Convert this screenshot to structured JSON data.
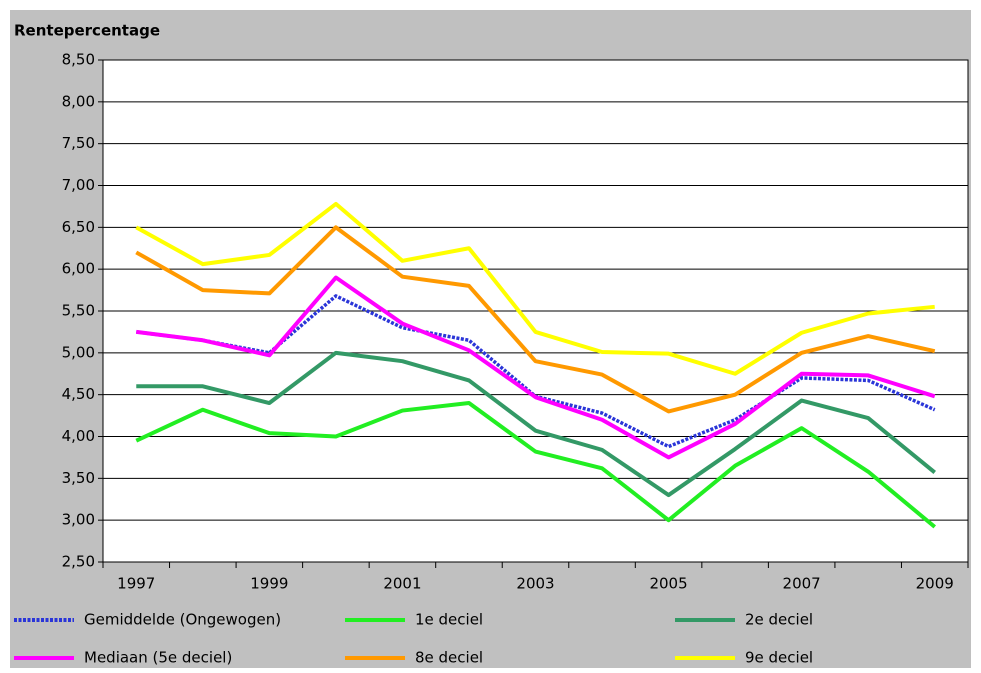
{
  "chart_data": {
    "type": "line",
    "title": "Rentepercentage",
    "categories": [
      "1997",
      null,
      "1999",
      null,
      "2001",
      null,
      "2003",
      null,
      "2005",
      null,
      "2007",
      null,
      "2009"
    ],
    "ylim": [
      2.5,
      8.5
    ],
    "yticks": [
      {
        "value": 2.5,
        "label": "2,50"
      },
      {
        "value": 3,
        "label": "3,00"
      },
      {
        "value": 3.5,
        "label": "3,50"
      },
      {
        "value": 4,
        "label": "4,00"
      },
      {
        "value": 4.5,
        "label": "4,50"
      },
      {
        "value": 5,
        "label": "5,00"
      },
      {
        "value": 5.5,
        "label": "5,50"
      },
      {
        "value": 6,
        "label": "6,00"
      },
      {
        "value": 6.5,
        "label": "6,50"
      },
      {
        "value": 7,
        "label": "7,00"
      },
      {
        "value": 7.5,
        "label": "7,50"
      },
      {
        "value": 8,
        "label": "8,00"
      },
      {
        "value": 8.5,
        "label": "8,50"
      }
    ],
    "grid": true,
    "series": [
      {
        "name": "Gemiddelde (Ongewogen)",
        "color": "#2a35d8",
        "dashed": true,
        "values": [
          5.25,
          5.15,
          5.0,
          5.68,
          5.3,
          5.15,
          4.48,
          4.28,
          3.88,
          4.2,
          4.7,
          4.67,
          4.32
        ]
      },
      {
        "name": "1e deciel",
        "color": "#22ee22",
        "values": [
          3.95,
          4.32,
          4.04,
          4.0,
          4.31,
          4.4,
          3.82,
          3.62,
          3.0,
          3.65,
          4.1,
          3.58,
          2.92
        ]
      },
      {
        "name": "2e deciel",
        "color": "#339966",
        "values": [
          4.6,
          4.6,
          4.4,
          5.0,
          4.9,
          4.67,
          4.07,
          3.84,
          3.3,
          3.85,
          4.43,
          4.22,
          3.57
        ]
      },
      {
        "name": "Mediaan (5e deciel)",
        "color": "#ff00ff",
        "values": [
          5.25,
          5.15,
          4.97,
          5.9,
          5.35,
          5.03,
          4.47,
          4.2,
          3.75,
          4.15,
          4.75,
          4.73,
          4.48
        ]
      },
      {
        "name": "8e deciel",
        "color": "#ff9900",
        "values": [
          6.2,
          5.75,
          5.71,
          6.5,
          5.91,
          5.8,
          4.9,
          4.74,
          4.3,
          4.5,
          5.0,
          5.2,
          5.02
        ]
      },
      {
        "name": "9e deciel",
        "color": "#ffff00",
        "values": [
          6.5,
          6.06,
          6.17,
          6.78,
          6.1,
          6.25,
          5.25,
          5.01,
          4.99,
          4.75,
          5.24,
          5.47,
          5.55
        ]
      }
    ]
  }
}
